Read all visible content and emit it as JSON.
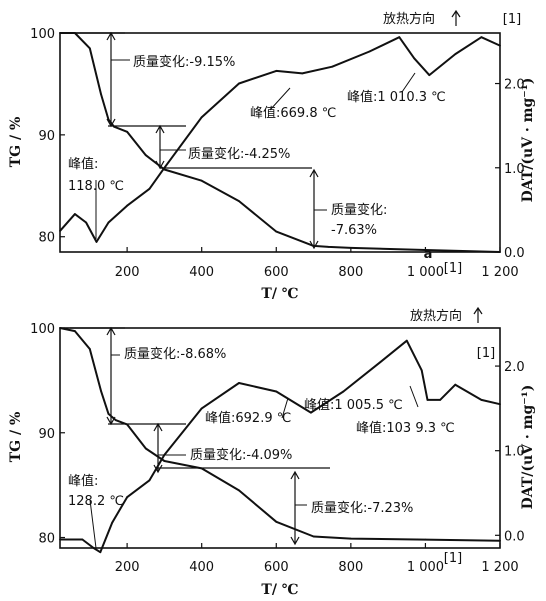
{
  "chart_data": [
    {
      "type": "line",
      "panel_label": "a",
      "xlabel": "T/ ℃",
      "ylabel_left": "TG / %",
      "ylabel_right": "DAT/(uV · mg⁻¹)",
      "xlim": [
        20,
        1200
      ],
      "ylim_left": [
        78.5,
        100
      ],
      "ylim_right": [
        0,
        2.6
      ],
      "x_ticks": [
        "200",
        "400",
        "600",
        "800",
        "1 000",
        "1 200"
      ],
      "y_ticks_left": [
        "80",
        "90",
        "100"
      ],
      "y_ticks_right": [
        "0.0",
        "1.0",
        "2.0"
      ],
      "top_right_label": "放热方向",
      "end_labels": [
        "[1]",
        "[1]"
      ],
      "series": [
        {
          "axis": "left",
          "x": [
            20,
            60,
            100,
            130,
            150,
            165,
            200,
            250,
            300,
            400,
            500,
            600,
            700,
            740,
            800,
            1000,
            1200
          ],
          "y": [
            100,
            100,
            98.5,
            94,
            91.5,
            90.8,
            90.3,
            88,
            86.6,
            85.5,
            83.5,
            80.5,
            79.1,
            79.0,
            78.9,
            78.7,
            78.5
          ]
        },
        {
          "axis": "right",
          "x": [
            20,
            60,
            90,
            118,
            150,
            200,
            260,
            300,
            400,
            500,
            600,
            669.8,
            750,
            850,
            930,
            970,
            1010.3,
            1080,
            1150,
            1200
          ],
          "y": [
            0.25,
            0.45,
            0.35,
            0.12,
            0.35,
            0.55,
            0.75,
            1.0,
            1.6,
            2.0,
            2.15,
            2.12,
            2.2,
            2.38,
            2.55,
            2.3,
            2.1,
            2.35,
            2.55,
            2.45
          ]
        }
      ],
      "annotations": [
        "质量变化:-9.15%",
        "质量变化:-4.25%",
        "质量变化:",
        "-7.63%",
        "峰值:",
        "118.0 ℃",
        "峰值:669.8 ℃",
        "峰值:1 010.3 ℃"
      ]
    },
    {
      "type": "line",
      "xlabel": "T/ ℃",
      "ylabel_left": "TG / %",
      "ylabel_right": "DAT/(uV · mg⁻¹)",
      "xlim": [
        20,
        1200
      ],
      "ylim_left": [
        79,
        100
      ],
      "ylim_right": [
        -0.15,
        2.45
      ],
      "x_ticks": [
        "200",
        "400",
        "600",
        "800",
        "1 000",
        "1 200"
      ],
      "y_ticks_left": [
        "80",
        "90",
        "100"
      ],
      "y_ticks_right": [
        "0.0",
        "1.0",
        "2.0"
      ],
      "top_right_label": "放热方向",
      "end_labels": [
        "[1]",
        "[1]"
      ],
      "series": [
        {
          "axis": "left",
          "x": [
            20,
            60,
            100,
            130,
            150,
            170,
            200,
            250,
            300,
            400,
            500,
            600,
            700,
            800,
            1000,
            1200
          ],
          "y": [
            100,
            99.7,
            98,
            94,
            91.8,
            91.2,
            90.8,
            88.5,
            87.3,
            86.6,
            84.5,
            81.5,
            80.1,
            79.9,
            79.8,
            79.7
          ]
        },
        {
          "axis": "right",
          "x": [
            20,
            80,
            110,
            128.2,
            160,
            200,
            260,
            300,
            400,
            500,
            600,
            692.9,
            780,
            880,
            950,
            990,
            1005.5,
            1039.3,
            1080,
            1150,
            1200
          ],
          "y": [
            -0.05,
            -0.05,
            -0.15,
            -0.2,
            0.15,
            0.45,
            0.65,
            0.95,
            1.5,
            1.8,
            1.7,
            1.45,
            1.7,
            2.05,
            2.3,
            1.95,
            1.6,
            1.6,
            1.78,
            1.6,
            1.55
          ]
        }
      ],
      "annotations": [
        "质量变化:-8.68%",
        "质量变化:-4.09%",
        "质量变化:-7.23%",
        "峰值:",
        "128.2 ℃",
        "峰值:692.9 ℃",
        "峰值:1 005.5 ℃",
        "峰值:103 9.3 ℃"
      ]
    }
  ]
}
